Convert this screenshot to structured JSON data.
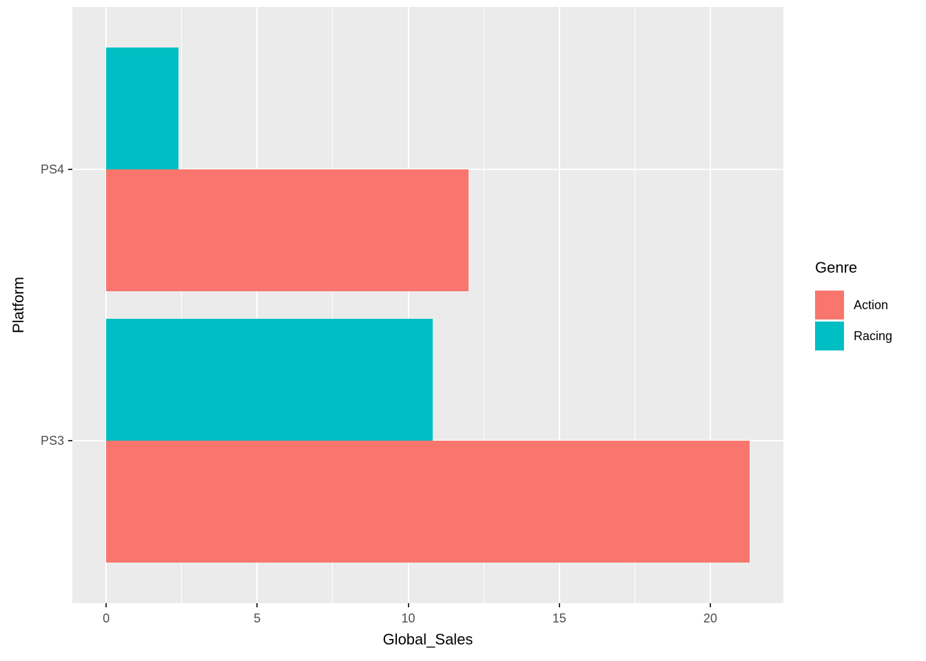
{
  "chart_data": {
    "type": "bar",
    "orientation": "horizontal",
    "title": "",
    "xlabel": "Global_Sales",
    "ylabel": "Platform",
    "categories": [
      "PS4",
      "PS3"
    ],
    "series": [
      {
        "name": "Action",
        "color": "#F8766D",
        "values": [
          12.0,
          21.3
        ]
      },
      {
        "name": "Racing",
        "color": "#00BFC4",
        "values": [
          2.4,
          10.8
        ]
      }
    ],
    "dodge_order_top_to_bottom": [
      "Racing",
      "Action"
    ],
    "xlim": [
      -1.12,
      22.42
    ],
    "x_major_ticks": [
      0,
      5,
      10,
      15,
      20
    ],
    "x_minor_ticks": [
      2.5,
      7.5,
      12.5,
      17.5,
      22.5
    ],
    "grid": true,
    "legend": {
      "title": "Genre",
      "position": "right",
      "entries": [
        {
          "label": "Action",
          "color": "#F8766D"
        },
        {
          "label": "Racing",
          "color": "#00BFC4"
        }
      ]
    },
    "colors": {
      "panel_background": "#EBEBEB",
      "grid": "#FFFFFF",
      "tick": "#333333",
      "tick_label": "#4D4D4D",
      "text": "#000000"
    }
  }
}
